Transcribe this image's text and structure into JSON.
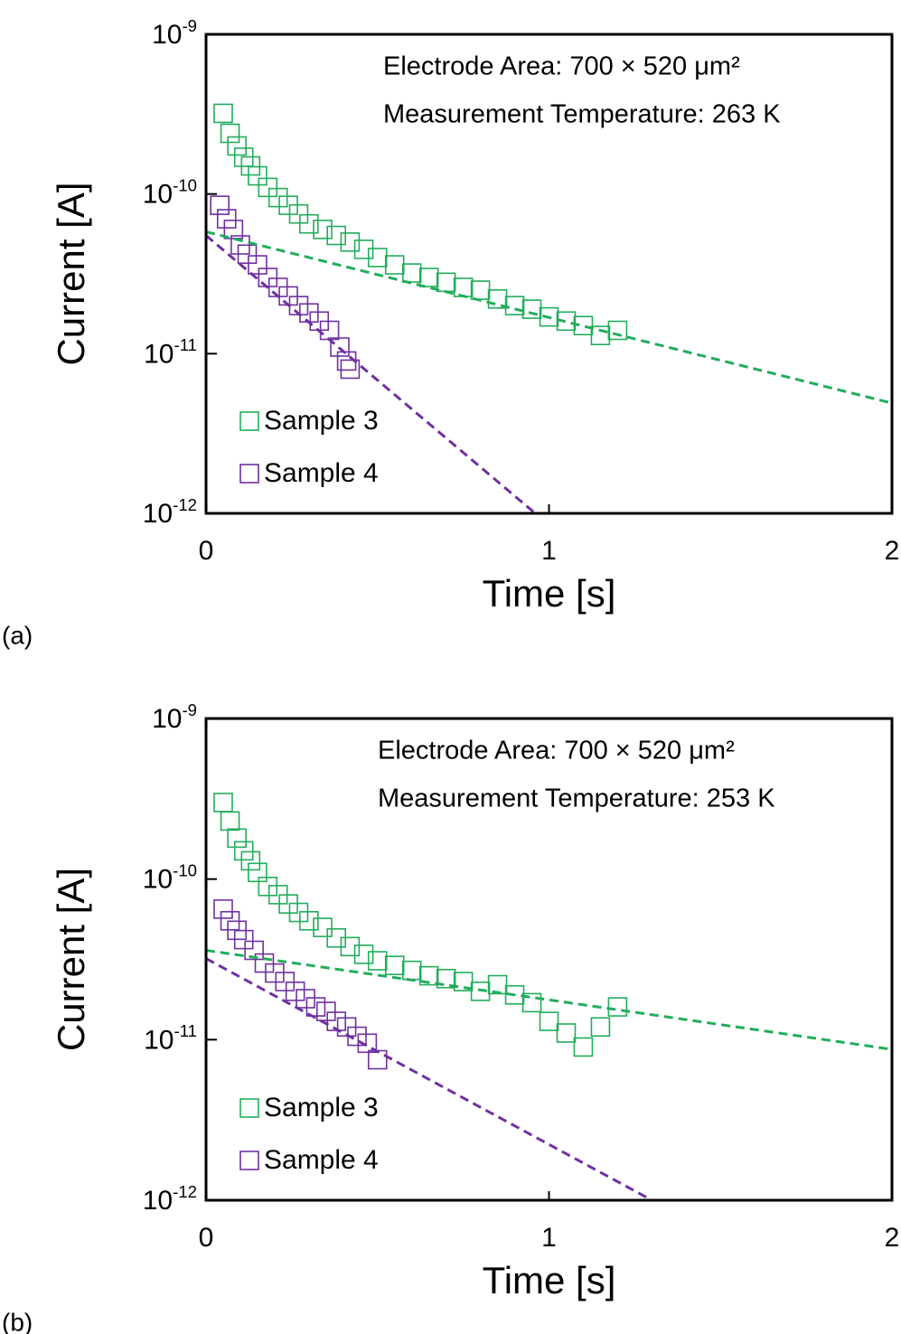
{
  "chart_data": [
    {
      "type": "scatter",
      "panel_label": "(a)",
      "annotations": [
        "Electrode Area: 700 × 520 μm²",
        "Measurement Temperature: 263 K"
      ],
      "xlabel": "Time [s]",
      "ylabel": "Current [A]",
      "xlim": [
        0,
        2
      ],
      "xticks": [
        0,
        1,
        2
      ],
      "ylim": [
        1e-12,
        1e-09
      ],
      "log_y": true,
      "yticks": [
        {
          "value": 1e-12,
          "label": "10-12"
        },
        {
          "value": 1e-11,
          "label": "10-11"
        },
        {
          "value": 1e-10,
          "label": "10-10"
        },
        {
          "value": 1e-09,
          "label": "10-9"
        }
      ],
      "legend": "lower left",
      "series": [
        {
          "name": "Sample 3",
          "color": "#22ad5c",
          "marker": "square",
          "x": [
            0.05,
            0.07,
            0.09,
            0.11,
            0.13,
            0.15,
            0.18,
            0.21,
            0.24,
            0.27,
            0.3,
            0.34,
            0.38,
            0.42,
            0.46,
            0.5,
            0.55,
            0.6,
            0.65,
            0.7,
            0.75,
            0.8,
            0.85,
            0.9,
            0.95,
            1.0,
            1.05,
            1.1,
            1.15,
            1.2
          ],
          "values": [
            3.2e-10,
            2.4e-10,
            2e-10,
            1.7e-10,
            1.5e-10,
            1.3e-10,
            1.1e-10,
            9.5e-11,
            8.5e-11,
            7.5e-11,
            6.5e-11,
            6e-11,
            5.5e-11,
            5e-11,
            4.5e-11,
            4e-11,
            3.6e-11,
            3.2e-11,
            3e-11,
            2.8e-11,
            2.6e-11,
            2.5e-11,
            2.2e-11,
            2e-11,
            1.9e-11,
            1.7e-11,
            1.6e-11,
            1.5e-11,
            1.3e-11,
            1.4e-11
          ]
        },
        {
          "name": "Sample 4",
          "color": "#7030a0",
          "marker": "square",
          "x": [
            0.04,
            0.06,
            0.08,
            0.1,
            0.12,
            0.15,
            0.18,
            0.21,
            0.24,
            0.27,
            0.3,
            0.33,
            0.36,
            0.39,
            0.41,
            0.42
          ],
          "values": [
            8.5e-11,
            7e-11,
            6e-11,
            4.8e-11,
            4.2e-11,
            3.6e-11,
            3e-11,
            2.6e-11,
            2.3e-11,
            2e-11,
            1.8e-11,
            1.6e-11,
            1.4e-11,
            1.1e-11,
            9e-12,
            8e-12
          ]
        },
        {
          "color": "#22ad5c",
          "style": "dashed",
          "x": [
            0,
            2
          ],
          "values": [
            5.8e-11,
            4.9e-12
          ]
        },
        {
          "color": "#7030a0",
          "style": "dashed",
          "x": [
            0,
            0.96
          ],
          "values": [
            5.5e-11,
            1e-12
          ]
        }
      ]
    },
    {
      "type": "scatter",
      "panel_label": "(b)",
      "annotations": [
        "Electrode Area: 700 × 520 μm²",
        "Measurement Temperature: 253 K"
      ],
      "xlabel": "Time [s]",
      "ylabel": "Current [A]",
      "xlim": [
        0,
        2
      ],
      "xticks": [
        0,
        1,
        2
      ],
      "ylim": [
        1e-12,
        1e-09
      ],
      "log_y": true,
      "yticks": [
        {
          "value": 1e-12,
          "label": "10-12"
        },
        {
          "value": 1e-11,
          "label": "10-11"
        },
        {
          "value": 1e-10,
          "label": "10-10"
        },
        {
          "value": 1e-09,
          "label": "10-9"
        }
      ],
      "legend": "lower left",
      "series": [
        {
          "name": "Sample 3",
          "color": "#22ad5c",
          "marker": "square",
          "x": [
            0.05,
            0.07,
            0.09,
            0.11,
            0.13,
            0.15,
            0.18,
            0.21,
            0.24,
            0.27,
            0.3,
            0.34,
            0.38,
            0.42,
            0.46,
            0.5,
            0.55,
            0.6,
            0.65,
            0.7,
            0.75,
            0.8,
            0.85,
            0.9,
            0.95,
            1.0,
            1.05,
            1.1,
            1.15,
            1.2
          ],
          "values": [
            3e-10,
            2.3e-10,
            1.8e-10,
            1.5e-10,
            1.3e-10,
            1.1e-10,
            9e-11,
            8e-11,
            7e-11,
            6.2e-11,
            5.5e-11,
            5e-11,
            4.3e-11,
            3.8e-11,
            3.4e-11,
            3.1e-11,
            2.9e-11,
            2.7e-11,
            2.5e-11,
            2.4e-11,
            2.3e-11,
            2e-11,
            2.2e-11,
            1.9e-11,
            1.7e-11,
            1.3e-11,
            1.1e-11,
            9e-12,
            1.2e-11,
            1.6e-11
          ]
        },
        {
          "name": "Sample 4",
          "color": "#7030a0",
          "marker": "square",
          "x": [
            0.05,
            0.07,
            0.09,
            0.11,
            0.14,
            0.17,
            0.2,
            0.23,
            0.26,
            0.29,
            0.32,
            0.35,
            0.38,
            0.41,
            0.44,
            0.47,
            0.5
          ],
          "values": [
            6.5e-11,
            5.5e-11,
            4.8e-11,
            4.2e-11,
            3.6e-11,
            3e-11,
            2.6e-11,
            2.3e-11,
            2e-11,
            1.8e-11,
            1.6e-11,
            1.5e-11,
            1.3e-11,
            1.2e-11,
            1.05e-11,
            9.5e-12,
            7.5e-12
          ]
        },
        {
          "color": "#22ad5c",
          "style": "dashed",
          "x": [
            0,
            2
          ],
          "values": [
            3.6e-11,
            8.7e-12
          ]
        },
        {
          "color": "#7030a0",
          "style": "dashed",
          "x": [
            0,
            1.3
          ],
          "values": [
            3.2e-11,
            1e-12
          ]
        }
      ]
    }
  ]
}
